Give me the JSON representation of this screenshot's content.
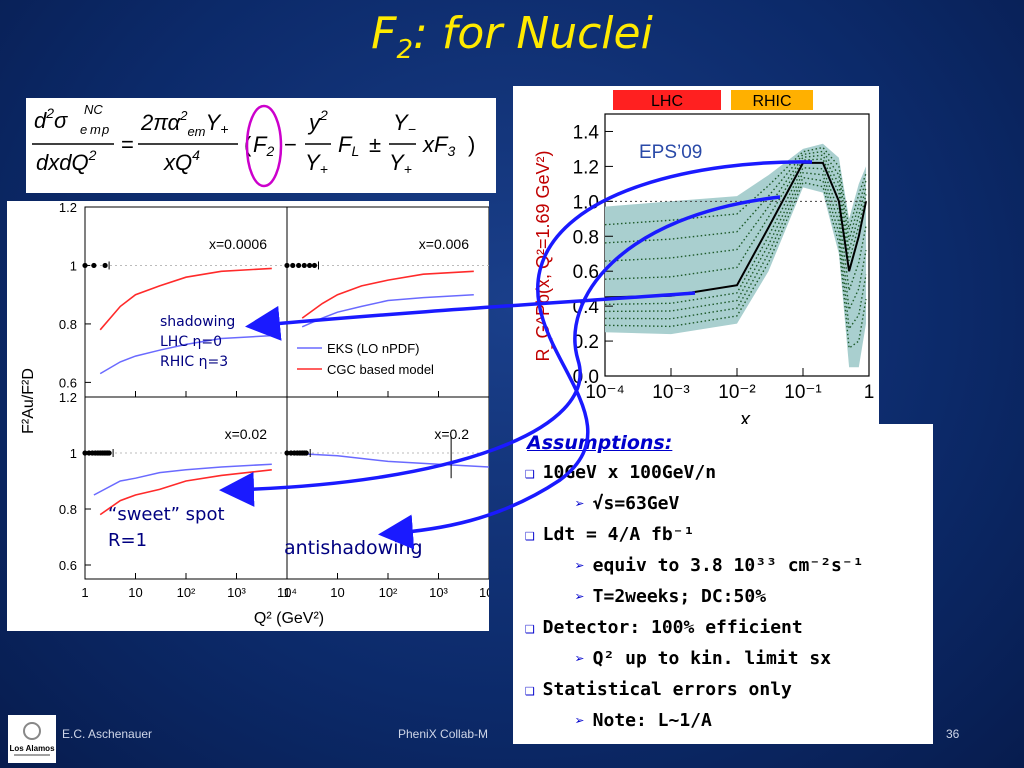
{
  "title": {
    "main": "F",
    "sub": "2",
    "rest": ": for Nuclei"
  },
  "formula": {
    "lhs_num": "d²σ",
    "lhs_sup": "NC",
    "lhs_sub": "e m p",
    "lhs_den": "dxdQ²",
    "rhs_num": "2πα²emY+",
    "rhs_den": "xQ⁴",
    "bracket": "(F₂ − y²/Y+ F_L ± Y−/Y+ xF₃)"
  },
  "annotations": {
    "shadowing": [
      "shadowing",
      "LHC η=0",
      "RHIC  η=3"
    ],
    "sweet_spot": [
      "“sweet” spot",
      "R=1"
    ],
    "antishadowing": "antishadowing"
  },
  "assumptions": {
    "heading": "Assumptions:",
    "items": [
      {
        "level": 1,
        "text": "10GeV x 100GeV/n"
      },
      {
        "level": 2,
        "text": "√s=63GeV"
      },
      {
        "level": 1,
        "text": "Ldt = 4/A fb⁻¹"
      },
      {
        "level": 2,
        "text": "equiv to 3.8 10³³ cm⁻²s⁻¹"
      },
      {
        "level": 2,
        "text": "T=2weeks; DC:50%"
      },
      {
        "level": 1,
        "text": "Detector: 100% efficient"
      },
      {
        "level": 2,
        "text": "Q² up to kin. limit sx"
      },
      {
        "level": 1,
        "text": "Statistical errors only"
      },
      {
        "level": 2,
        "text": "Note: L~1/A"
      }
    ]
  },
  "footer": {
    "author": "E.C. Aschenauer",
    "center": "PheniX Collab-M",
    "page": "36",
    "logo_text": "Los Alamos"
  },
  "chart_data": [
    {
      "type": "line",
      "panels": [
        {
          "label": "x=0.0006",
          "eks": [
            [
              2,
              0.63
            ],
            [
              5,
              0.67
            ],
            [
              10,
              0.69
            ],
            [
              30,
              0.71
            ],
            [
              100,
              0.73
            ],
            [
              500,
              0.75
            ],
            [
              5000,
              0.76
            ]
          ],
          "cgc": [
            [
              2,
              0.78
            ],
            [
              5,
              0.86
            ],
            [
              10,
              0.9
            ],
            [
              30,
              0.93
            ],
            [
              100,
              0.96
            ],
            [
              500,
              0.98
            ],
            [
              5000,
              0.99
            ]
          ],
          "points": [
            1,
            1.5,
            2.5
          ]
        },
        {
          "label": "x=0.006",
          "eks": [
            [
              2,
              0.79
            ],
            [
              5,
              0.82
            ],
            [
              10,
              0.84
            ],
            [
              30,
              0.86
            ],
            [
              100,
              0.88
            ],
            [
              500,
              0.89
            ],
            [
              5000,
              0.9
            ]
          ],
          "cgc": [
            [
              2,
              0.82
            ],
            [
              5,
              0.87
            ],
            [
              10,
              0.9
            ],
            [
              30,
              0.93
            ],
            [
              100,
              0.95
            ],
            [
              500,
              0.97
            ],
            [
              5000,
              0.98
            ]
          ],
          "points": [
            1,
            1.3,
            1.7,
            2.2,
            2.8,
            3.5
          ]
        },
        {
          "label": "x=0.02",
          "eks": [
            [
              1.5,
              0.85
            ],
            [
              5,
              0.9
            ],
            [
              10,
              0.91
            ],
            [
              30,
              0.93
            ],
            [
              100,
              0.94
            ],
            [
              500,
              0.95
            ],
            [
              5000,
              0.96
            ]
          ],
          "cgc": [
            [
              2,
              0.78
            ],
            [
              5,
              0.83
            ],
            [
              10,
              0.85
            ],
            [
              30,
              0.87
            ],
            [
              100,
              0.9
            ],
            [
              500,
              0.92
            ],
            [
              5000,
              0.94
            ]
          ],
          "points": [
            1,
            1.2,
            1.4,
            1.6,
            1.8,
            2.0,
            2.2,
            2.4,
            2.6,
            2.8,
            3.0
          ]
        },
        {
          "label": "x=0.2",
          "eks": [
            [
              1,
              1.0
            ],
            [
              10,
              0.99
            ],
            [
              100,
              0.97
            ],
            [
              1000,
              0.96
            ],
            [
              10000,
              0.95
            ]
          ],
          "cgc": [],
          "points": [
            1,
            1.2,
            1.4,
            1.6,
            1.8,
            2.0,
            2.2,
            2.4
          ]
        }
      ],
      "legend": [
        "EKS (LO nPDF)",
        "CGC based model"
      ],
      "series_colors": {
        "eks": "#6a6aff",
        "cgc": "#ff2a2a"
      },
      "ylabel": "F²Au/F²D",
      "xlabel": "Q² (GeV²)",
      "xticks": [
        "1",
        "10",
        "10²",
        "10³",
        "10⁴"
      ],
      "yticks": [
        "0.6",
        "0.8",
        "1",
        "1.2"
      ]
    },
    {
      "type": "line",
      "label": "EPS’09",
      "bands": [
        "LHC",
        "RHIC"
      ],
      "band_colors": {
        "LHC": "#ff2020",
        "RHIC": "#ffb000"
      },
      "ylabel": "R_G^Pb(x, Q²=1.69 GeV²)",
      "xlabel": "x",
      "xticks": [
        "10⁻⁴",
        "10⁻³",
        "10⁻²",
        "10⁻¹",
        "1"
      ],
      "yticks": [
        "0.0",
        "0.2",
        "0.4",
        "0.6",
        "0.8",
        "1.0",
        "1.2",
        "1.4"
      ],
      "central": [
        [
          0.0001,
          0.45
        ],
        [
          0.001,
          0.46
        ],
        [
          0.01,
          0.52
        ],
        [
          0.03,
          0.85
        ],
        [
          0.1,
          1.22
        ],
        [
          0.2,
          1.22
        ],
        [
          0.35,
          1.0
        ],
        [
          0.5,
          0.6
        ],
        [
          0.7,
          0.8
        ],
        [
          0.9,
          1.0
        ]
      ],
      "band_upper": [
        [
          0.0001,
          0.97
        ],
        [
          0.001,
          1.0
        ],
        [
          0.01,
          1.03
        ],
        [
          0.03,
          1.15
        ],
        [
          0.1,
          1.3
        ],
        [
          0.2,
          1.33
        ],
        [
          0.35,
          1.25
        ],
        [
          0.5,
          0.9
        ],
        [
          0.7,
          1.1
        ],
        [
          0.9,
          1.2
        ]
      ],
      "band_lower": [
        [
          0.0001,
          0.25
        ],
        [
          0.001,
          0.24
        ],
        [
          0.01,
          0.3
        ],
        [
          0.03,
          0.6
        ],
        [
          0.1,
          1.08
        ],
        [
          0.2,
          1.05
        ],
        [
          0.35,
          0.7
        ],
        [
          0.5,
          0.05
        ],
        [
          0.7,
          0.05
        ],
        [
          0.9,
          0.3
        ]
      ]
    }
  ]
}
